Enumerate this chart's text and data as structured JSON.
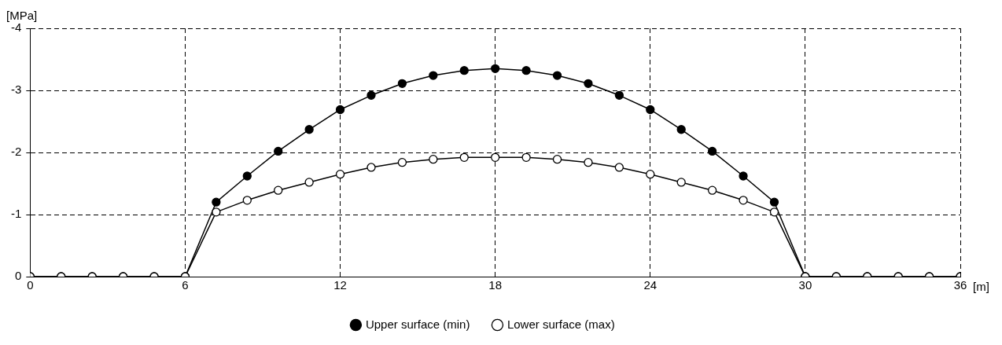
{
  "chart_data": {
    "type": "line",
    "ylabel": "[MPa]",
    "xlabel": "[m]",
    "x": [
      0,
      1.2,
      2.4,
      3.6,
      4.8,
      6,
      7.2,
      8.4,
      9.6,
      10.8,
      12,
      13.2,
      14.4,
      15.6,
      16.8,
      18,
      19.2,
      20.4,
      21.6,
      22.8,
      24,
      25.2,
      26.4,
      27.6,
      28.8,
      30,
      31.2,
      32.4,
      33.6,
      34.8,
      36
    ],
    "series": [
      {
        "name": "Upper surface (min)",
        "color": "#000000",
        "values": [
          0,
          0,
          0,
          0,
          0,
          0,
          -1.2,
          -1.62,
          -2.02,
          -2.37,
          -2.69,
          -2.92,
          -3.11,
          -3.24,
          -3.32,
          -3.35,
          -3.32,
          -3.24,
          -3.11,
          -2.92,
          -2.69,
          -2.37,
          -2.02,
          -1.62,
          -1.2,
          0,
          0,
          0,
          0,
          0,
          0
        ]
      },
      {
        "name": "Lower surface (max)",
        "color": "#000000",
        "values": [
          0,
          0,
          0,
          0,
          0,
          0,
          -1.04,
          -1.23,
          -1.39,
          -1.52,
          -1.65,
          -1.76,
          -1.84,
          -1.89,
          -1.92,
          -1.92,
          -1.92,
          -1.89,
          -1.84,
          -1.76,
          -1.65,
          -1.52,
          -1.39,
          -1.23,
          -1.04,
          0,
          0,
          0,
          0,
          0,
          0
        ]
      }
    ],
    "xlim": [
      0,
      36
    ],
    "xticks": [
      0,
      6,
      12,
      18,
      24,
      30,
      36
    ],
    "ylim": [
      0,
      -4
    ],
    "yticks": [
      0,
      -1,
      -2,
      -3,
      -4
    ],
    "grid": true,
    "legend": "bottom",
    "marker": "circle",
    "line_style": "solid"
  }
}
